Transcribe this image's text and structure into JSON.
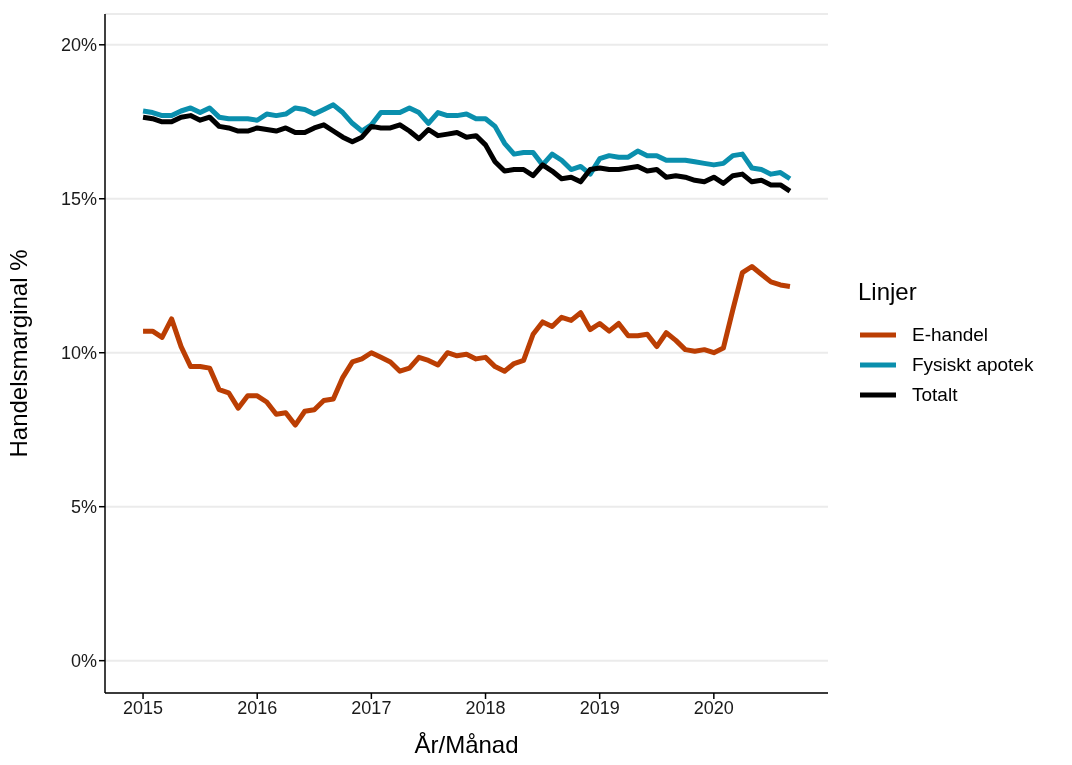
{
  "chart_data": {
    "type": "line",
    "xlabel": "År/Månad",
    "ylabel": "Handelsmarginal %",
    "legend_title": "Linjer",
    "x": [
      "2015-01",
      "2015-02",
      "2015-03",
      "2015-04",
      "2015-05",
      "2015-06",
      "2015-07",
      "2015-08",
      "2015-09",
      "2015-10",
      "2015-11",
      "2015-12",
      "2016-01",
      "2016-02",
      "2016-03",
      "2016-04",
      "2016-05",
      "2016-06",
      "2016-07",
      "2016-08",
      "2016-09",
      "2016-10",
      "2016-11",
      "2016-12",
      "2017-01",
      "2017-02",
      "2017-03",
      "2017-04",
      "2017-05",
      "2017-06",
      "2017-07",
      "2017-08",
      "2017-09",
      "2017-10",
      "2017-11",
      "2017-12",
      "2018-01",
      "2018-02",
      "2018-03",
      "2018-04",
      "2018-05",
      "2018-06",
      "2018-07",
      "2018-08",
      "2018-09",
      "2018-10",
      "2018-11",
      "2018-12",
      "2019-01",
      "2019-02",
      "2019-03",
      "2019-04",
      "2019-05",
      "2019-06",
      "2019-07",
      "2019-08",
      "2019-09",
      "2019-10",
      "2019-11",
      "2019-12",
      "2020-01",
      "2020-02",
      "2020-03",
      "2020-04",
      "2020-05",
      "2020-06",
      "2020-07",
      "2020-08",
      "2020-09"
    ],
    "series": [
      {
        "name": "E-handel",
        "color": "#bb3e03",
        "values": [
          10.7,
          10.7,
          10.5,
          11.1,
          10.2,
          9.55,
          9.55,
          9.5,
          8.8,
          8.7,
          8.2,
          8.6,
          8.6,
          8.4,
          8.0,
          8.05,
          7.65,
          8.1,
          8.15,
          8.45,
          8.5,
          9.2,
          9.7,
          9.8,
          10.0,
          9.85,
          9.7,
          9.4,
          9.5,
          9.85,
          9.75,
          9.6,
          10.0,
          9.9,
          9.95,
          9.8,
          9.85,
          9.55,
          9.4,
          9.65,
          9.75,
          10.6,
          11.0,
          10.85,
          11.15,
          11.05,
          11.3,
          10.75,
          10.95,
          10.7,
          10.95,
          10.55,
          10.55,
          10.6,
          10.2,
          10.65,
          10.4,
          10.1,
          10.05,
          10.1,
          10.0,
          10.15,
          11.4,
          12.6,
          12.8,
          12.55,
          12.3,
          12.2,
          12.15
        ]
      },
      {
        "name": "Fysiskt apotek",
        "color": "#0a8fad",
        "values": [
          17.85,
          17.8,
          17.7,
          17.7,
          17.85,
          17.95,
          17.8,
          17.95,
          17.65,
          17.6,
          17.6,
          17.6,
          17.55,
          17.75,
          17.7,
          17.75,
          17.95,
          17.9,
          17.75,
          17.9,
          18.05,
          17.8,
          17.45,
          17.2,
          17.4,
          17.8,
          17.8,
          17.8,
          17.95,
          17.8,
          17.45,
          17.8,
          17.7,
          17.7,
          17.75,
          17.6,
          17.6,
          17.35,
          16.8,
          16.45,
          16.5,
          16.5,
          16.1,
          16.45,
          16.25,
          15.95,
          16.05,
          15.8,
          16.3,
          16.4,
          16.35,
          16.35,
          16.55,
          16.4,
          16.4,
          16.25,
          16.25,
          16.25,
          16.2,
          16.15,
          16.1,
          16.15,
          16.4,
          16.45,
          16.0,
          15.95,
          15.8,
          15.85,
          15.65
        ]
      },
      {
        "name": "Totalt",
        "color": "#000000",
        "values": [
          17.65,
          17.6,
          17.5,
          17.5,
          17.65,
          17.7,
          17.55,
          17.65,
          17.35,
          17.3,
          17.2,
          17.2,
          17.3,
          17.25,
          17.2,
          17.3,
          17.15,
          17.15,
          17.3,
          17.4,
          17.2,
          17.0,
          16.85,
          17.0,
          17.35,
          17.3,
          17.3,
          17.4,
          17.2,
          16.95,
          17.25,
          17.05,
          17.1,
          17.15,
          17.0,
          17.05,
          16.75,
          16.2,
          15.9,
          15.95,
          15.95,
          15.75,
          16.1,
          15.9,
          15.65,
          15.7,
          15.55,
          15.95,
          16.0,
          15.95,
          15.95,
          16.0,
          16.05,
          15.9,
          15.95,
          15.7,
          15.75,
          15.7,
          15.6,
          15.55,
          15.7,
          15.5,
          15.75,
          15.8,
          15.55,
          15.6,
          15.45,
          15.45,
          15.25
        ]
      }
    ],
    "xlim": [
      "2014-09",
      "2021-01"
    ],
    "xticks": [
      "2015",
      "2016",
      "2017",
      "2018",
      "2019",
      "2020"
    ],
    "ylim": [
      -1.05,
      21
    ],
    "yticks": [
      {
        "value": 0,
        "label": "0%"
      },
      {
        "value": 5,
        "label": "5%"
      },
      {
        "value": 10,
        "label": "10%"
      },
      {
        "value": 15,
        "label": "15%"
      },
      {
        "value": 20,
        "label": "20%"
      }
    ],
    "grid": "y",
    "legend": "right",
    "line_style": "solid",
    "marker": "none"
  }
}
